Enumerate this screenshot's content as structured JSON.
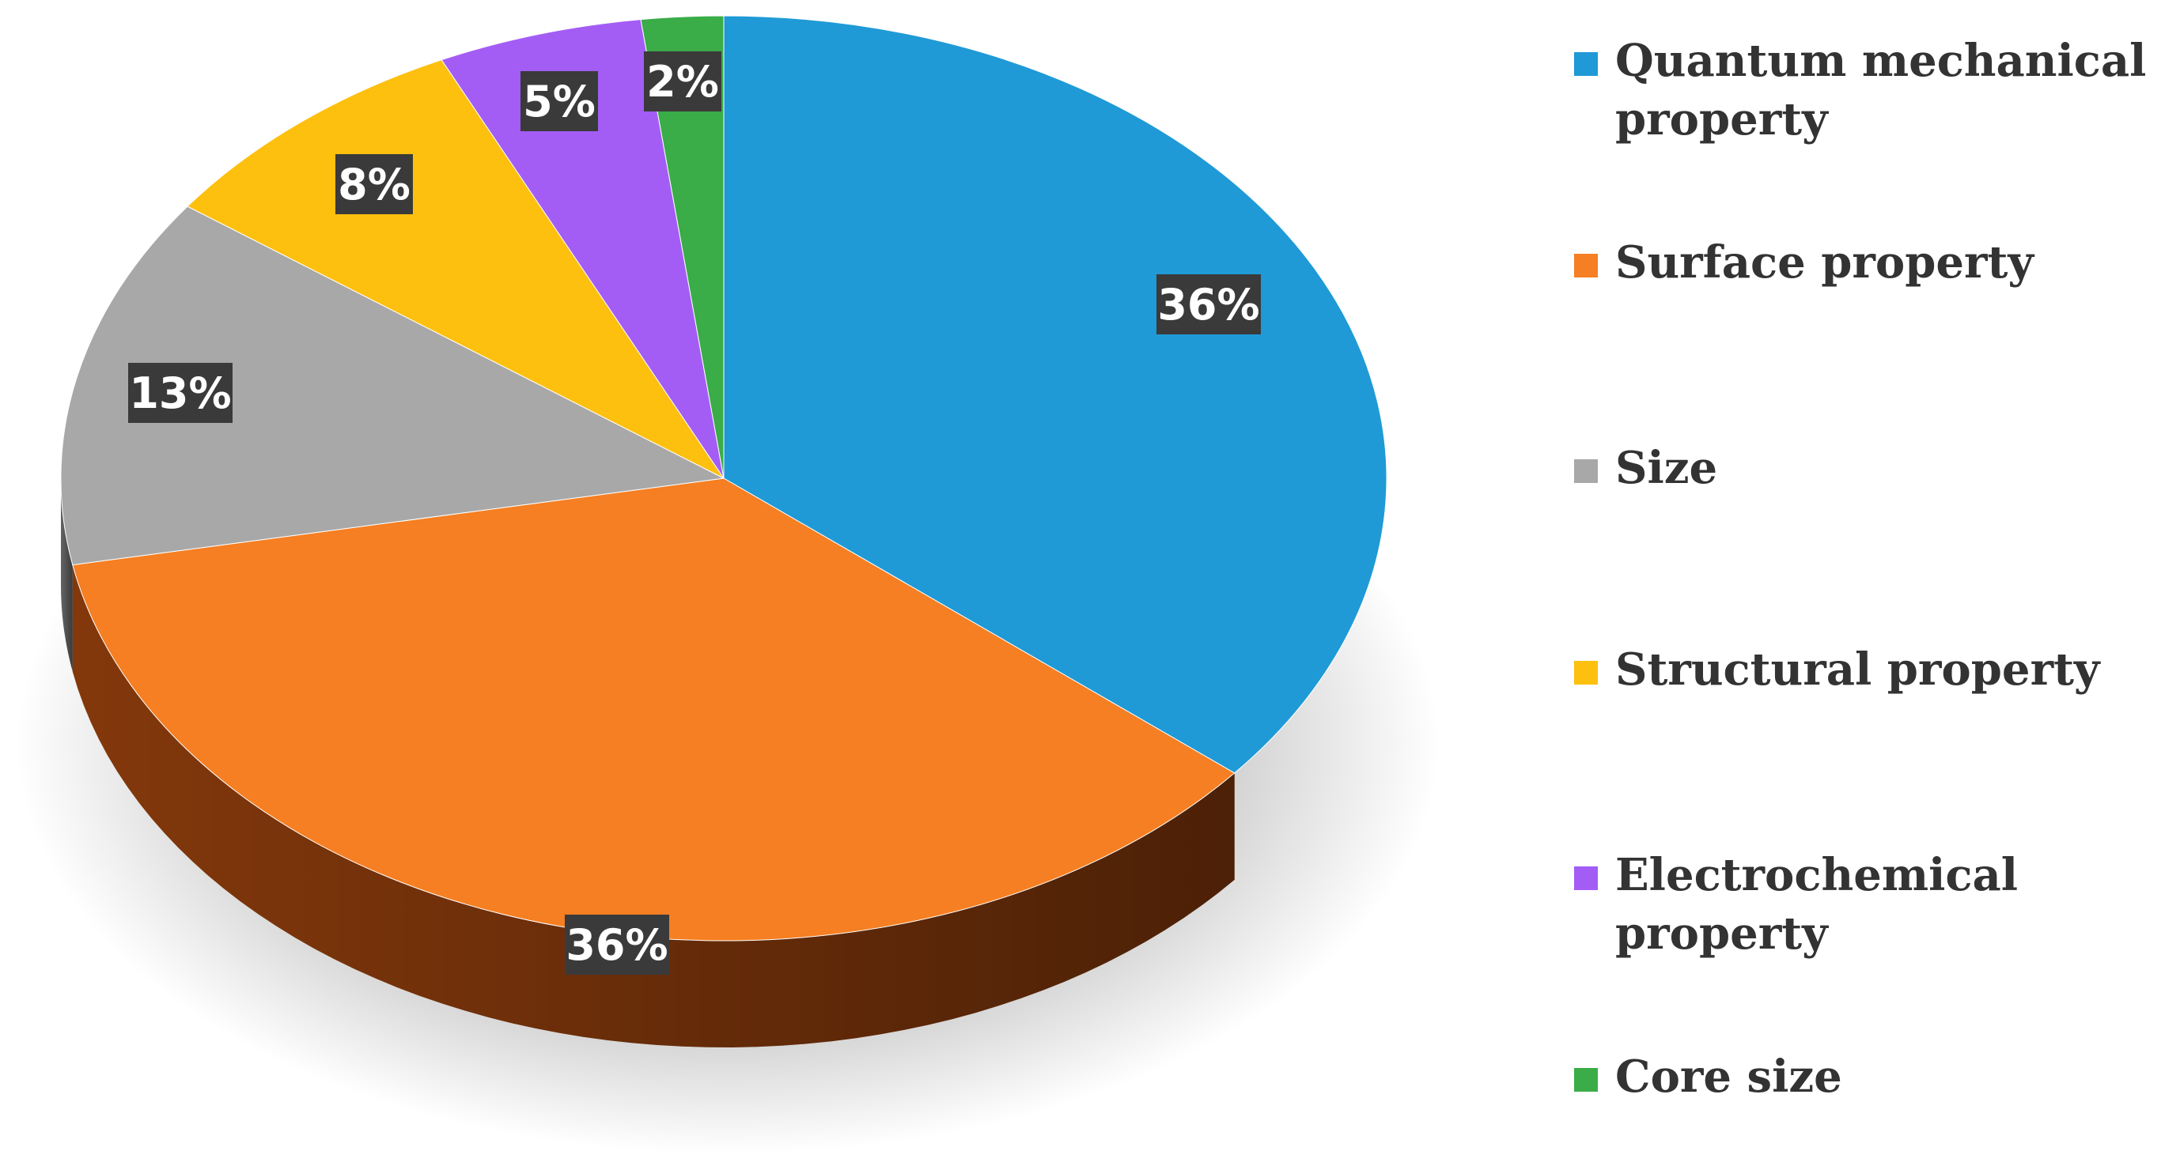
{
  "chart_data": {
    "type": "pie",
    "title": "",
    "slices": [
      {
        "label": "Quantum mechanical property",
        "value": 36,
        "value_label": "36%",
        "color": "#1f9ad6",
        "side_color": "#0e3d57"
      },
      {
        "label": "Surface property",
        "value": 36,
        "value_label": "36%",
        "color": "#f57f22",
        "side_color": "#8a3b0c"
      },
      {
        "label": "Size",
        "value": 13,
        "value_label": "13%",
        "color": "#a8a8a8",
        "side_color": "#6a6a6a"
      },
      {
        "label": "Structural property",
        "value": 8,
        "value_label": "8%",
        "color": "#fdc00f",
        "side_color": "#9c7400"
      },
      {
        "label": "Electrochemical property",
        "value": 5,
        "value_label": "5%",
        "color": "#a35df5",
        "side_color": "#5d2a9a"
      },
      {
        "label": "Core size",
        "value": 2,
        "value_label": "2%",
        "color": "#3aac48",
        "side_color": "#1d6a26"
      }
    ],
    "legend_position": "right",
    "style": "3d"
  }
}
